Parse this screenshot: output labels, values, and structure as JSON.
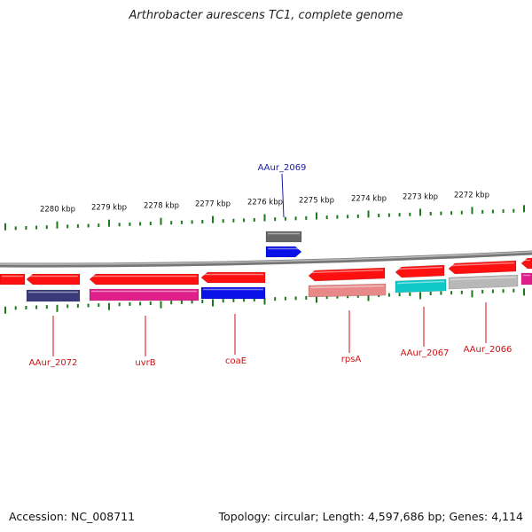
{
  "title": "Arthrobacter aurescens TC1, complete genome",
  "footer": {
    "accession": "Accession: NC_008711",
    "summary": "Topology: circular; Length: 4,597,686 bp; Genes: 4,114"
  },
  "ticks": [
    "2280 kbp",
    "2279 kbp",
    "2278 kbp",
    "2277 kbp",
    "2276 kbp",
    "2275 kbp",
    "2274 kbp",
    "2273 kbp",
    "2272 kbp"
  ],
  "labels": [
    {
      "text": "AAur_2069",
      "color": "#1a1aa8"
    },
    {
      "text": "AAur_2072",
      "color": "#cc1111"
    },
    {
      "text": "uvrB",
      "color": "#cc1111"
    },
    {
      "text": "coaE",
      "color": "#cc1111"
    },
    {
      "text": "rpsA",
      "color": "#cc1111"
    },
    {
      "text": "AAur_2067",
      "color": "#cc1111"
    },
    {
      "text": "AAur_2066",
      "color": "#cc1111"
    }
  ],
  "colors": {
    "red": "#ff1010",
    "navy": "#3a3a7a",
    "magenta": "#e0208a",
    "blue": "#0a10e8",
    "pink": "#e88888",
    "cyan": "#10c8c8",
    "gray": "#b8b8b8",
    "darkgray": "#666666",
    "tickgreen": "#1a7a1a"
  }
}
